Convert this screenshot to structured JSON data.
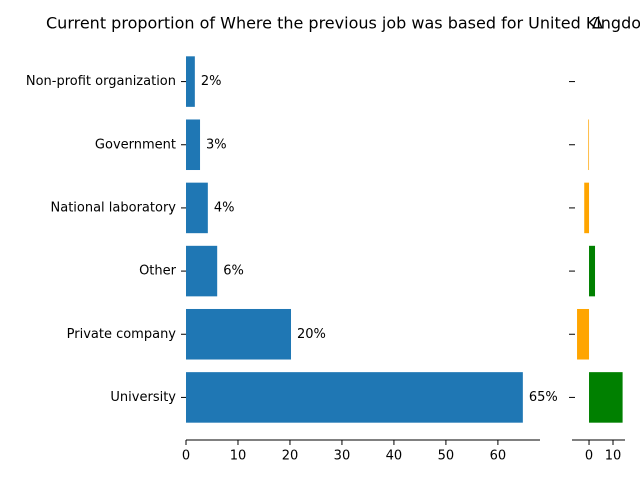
{
  "chart_data": [
    {
      "type": "barh",
      "title": "Current proportion of Where the previous job was based for United Kingdom",
      "categories": [
        "Non-profit organization",
        "Government",
        "National laboratory",
        "Other",
        "Private company",
        "University"
      ],
      "values": [
        1.7,
        2.7,
        4.2,
        6.0,
        20.2,
        64.8
      ],
      "value_labels": [
        "2%",
        "3%",
        "4%",
        "6%",
        "20%",
        "65%"
      ],
      "color": "#1f77b4",
      "xlim": [
        0,
        68.1
      ],
      "xticks": [
        0,
        10,
        20,
        30,
        40,
        50,
        60
      ]
    },
    {
      "type": "delta",
      "title": "Δ",
      "values": [
        0,
        -0.3,
        -2,
        2.5,
        -5,
        14
      ],
      "positive_color": "#008000",
      "negative_color": "#ffa500",
      "xlim": [
        -7.1,
        15
      ],
      "xticks": [
        0,
        10
      ]
    }
  ]
}
